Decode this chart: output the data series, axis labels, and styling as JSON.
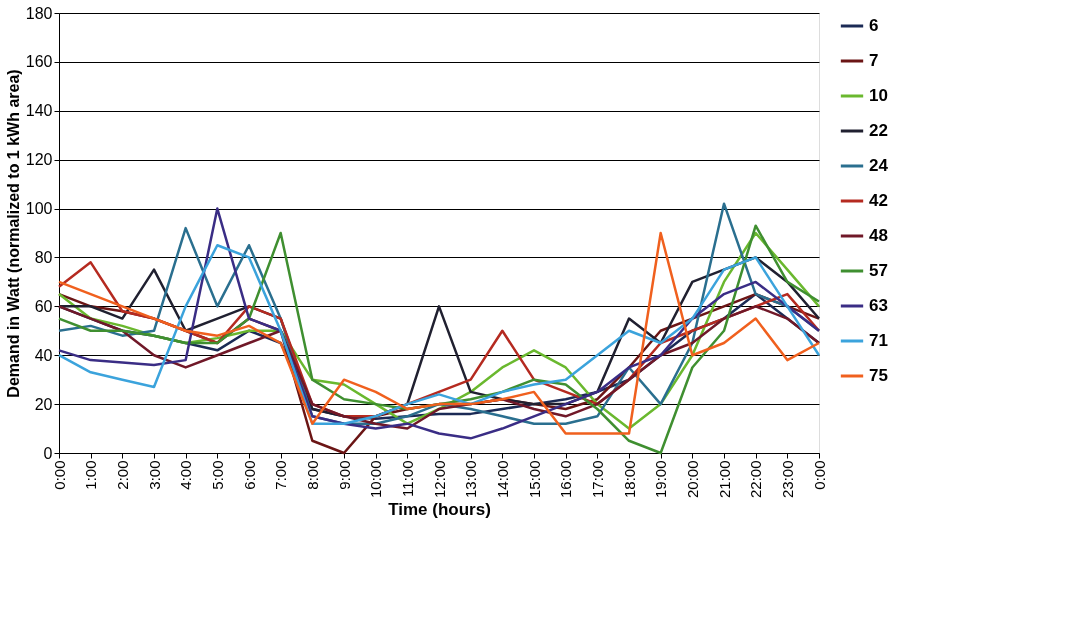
{
  "chart_data": {
    "type": "line",
    "xlabel": "Time (hours)",
    "ylabel": "Demand in Watt (normalized to 1 kWh area)",
    "x": [
      0,
      1,
      2,
      3,
      4,
      5,
      6,
      7,
      8,
      9,
      10,
      11,
      12,
      13,
      14,
      15,
      16,
      17,
      18,
      19,
      20,
      21,
      22,
      23,
      24
    ],
    "xlim": [
      0,
      24
    ],
    "xticks": [
      {
        "value": 0,
        "label": "0:00"
      },
      {
        "value": 1,
        "label": "1:00"
      },
      {
        "value": 2,
        "label": "2:00"
      },
      {
        "value": 3,
        "label": "3:00"
      },
      {
        "value": 4,
        "label": "4:00"
      },
      {
        "value": 5,
        "label": "5:00"
      },
      {
        "value": 6,
        "label": "6:00"
      },
      {
        "value": 7,
        "label": "7:00"
      },
      {
        "value": 8,
        "label": "8:00"
      },
      {
        "value": 9,
        "label": "9:00"
      },
      {
        "value": 10,
        "label": "10:00"
      },
      {
        "value": 11,
        "label": "11:00"
      },
      {
        "value": 12,
        "label": "12:00"
      },
      {
        "value": 13,
        "label": "13:00"
      },
      {
        "value": 14,
        "label": "14:00"
      },
      {
        "value": 15,
        "label": "15:00"
      },
      {
        "value": 16,
        "label": "16:00"
      },
      {
        "value": 17,
        "label": "17:00"
      },
      {
        "value": 18,
        "label": "18:00"
      },
      {
        "value": 19,
        "label": "19:00"
      },
      {
        "value": 20,
        "label": "20:00"
      },
      {
        "value": 21,
        "label": "21:00"
      },
      {
        "value": 22,
        "label": "22:00"
      },
      {
        "value": 23,
        "label": "23:00"
      },
      {
        "value": 24,
        "label": "0:00"
      }
    ],
    "ylim": [
      0,
      180
    ],
    "yticks": [
      0,
      20,
      40,
      60,
      80,
      100,
      120,
      140,
      160,
      180
    ],
    "grid": "y",
    "legend": "right",
    "marker": "none",
    "line_style": "solid",
    "series": [
      {
        "name": "6",
        "color": "#1b2a55",
        "values": [
          60,
          55,
          50,
          48,
          45,
          42,
          50,
          45,
          18,
          15,
          14,
          15,
          16,
          16,
          18,
          20,
          22,
          25,
          30,
          40,
          50,
          55,
          65,
          55,
          45
        ]
      },
      {
        "name": "7",
        "color": "#6b1515",
        "values": [
          65,
          60,
          58,
          55,
          50,
          45,
          55,
          50,
          5,
          0,
          15,
          18,
          20,
          20,
          22,
          20,
          18,
          22,
          35,
          50,
          55,
          60,
          65,
          60,
          55
        ]
      },
      {
        "name": "10",
        "color": "#6ab82e",
        "values": [
          65,
          55,
          52,
          48,
          45,
          47,
          50,
          50,
          30,
          28,
          20,
          12,
          18,
          25,
          35,
          42,
          35,
          20,
          10,
          20,
          40,
          70,
          90,
          75,
          60
        ]
      },
      {
        "name": "22",
        "color": "#202030",
        "values": [
          60,
          60,
          55,
          75,
          50,
          55,
          60,
          55,
          18,
          15,
          15,
          20,
          60,
          25,
          22,
          20,
          20,
          25,
          55,
          45,
          70,
          75,
          80,
          70,
          55
        ]
      },
      {
        "name": "24",
        "color": "#2a6f8f",
        "values": [
          50,
          52,
          48,
          50,
          92,
          60,
          85,
          55,
          15,
          12,
          12,
          15,
          20,
          18,
          15,
          12,
          12,
          15,
          35,
          20,
          45,
          102,
          65,
          60,
          50
        ]
      },
      {
        "name": "42",
        "color": "#b52a20",
        "values": [
          68,
          78,
          58,
          55,
          50,
          45,
          60,
          55,
          20,
          15,
          15,
          20,
          25,
          30,
          50,
          30,
          25,
          20,
          30,
          45,
          50,
          55,
          60,
          65,
          50
        ]
      },
      {
        "name": "48",
        "color": "#701828",
        "values": [
          60,
          55,
          50,
          40,
          35,
          40,
          45,
          50,
          20,
          15,
          12,
          10,
          18,
          20,
          22,
          18,
          15,
          20,
          30,
          40,
          45,
          55,
          60,
          55,
          45
        ]
      },
      {
        "name": "57",
        "color": "#3f8f30",
        "values": [
          55,
          50,
          50,
          48,
          45,
          45,
          55,
          90,
          30,
          22,
          20,
          18,
          20,
          22,
          25,
          30,
          28,
          18,
          5,
          0,
          35,
          50,
          93,
          70,
          62
        ]
      },
      {
        "name": "63",
        "color": "#3a2d85",
        "values": [
          42,
          38,
          37,
          36,
          38,
          100,
          55,
          50,
          15,
          12,
          10,
          12,
          8,
          6,
          10,
          15,
          20,
          25,
          35,
          40,
          55,
          65,
          70,
          60,
          50
        ]
      },
      {
        "name": "71",
        "color": "#3ba3dc",
        "values": [
          40,
          33,
          30,
          27,
          60,
          85,
          80,
          50,
          12,
          12,
          15,
          20,
          24,
          20,
          25,
          28,
          30,
          40,
          50,
          45,
          55,
          75,
          80,
          60,
          40
        ]
      },
      {
        "name": "75",
        "color": "#f0601e",
        "values": [
          70,
          65,
          60,
          55,
          50,
          48,
          52,
          45,
          12,
          30,
          25,
          18,
          20,
          20,
          22,
          25,
          8,
          8,
          8,
          90,
          40,
          45,
          55,
          38,
          45
        ]
      }
    ]
  }
}
